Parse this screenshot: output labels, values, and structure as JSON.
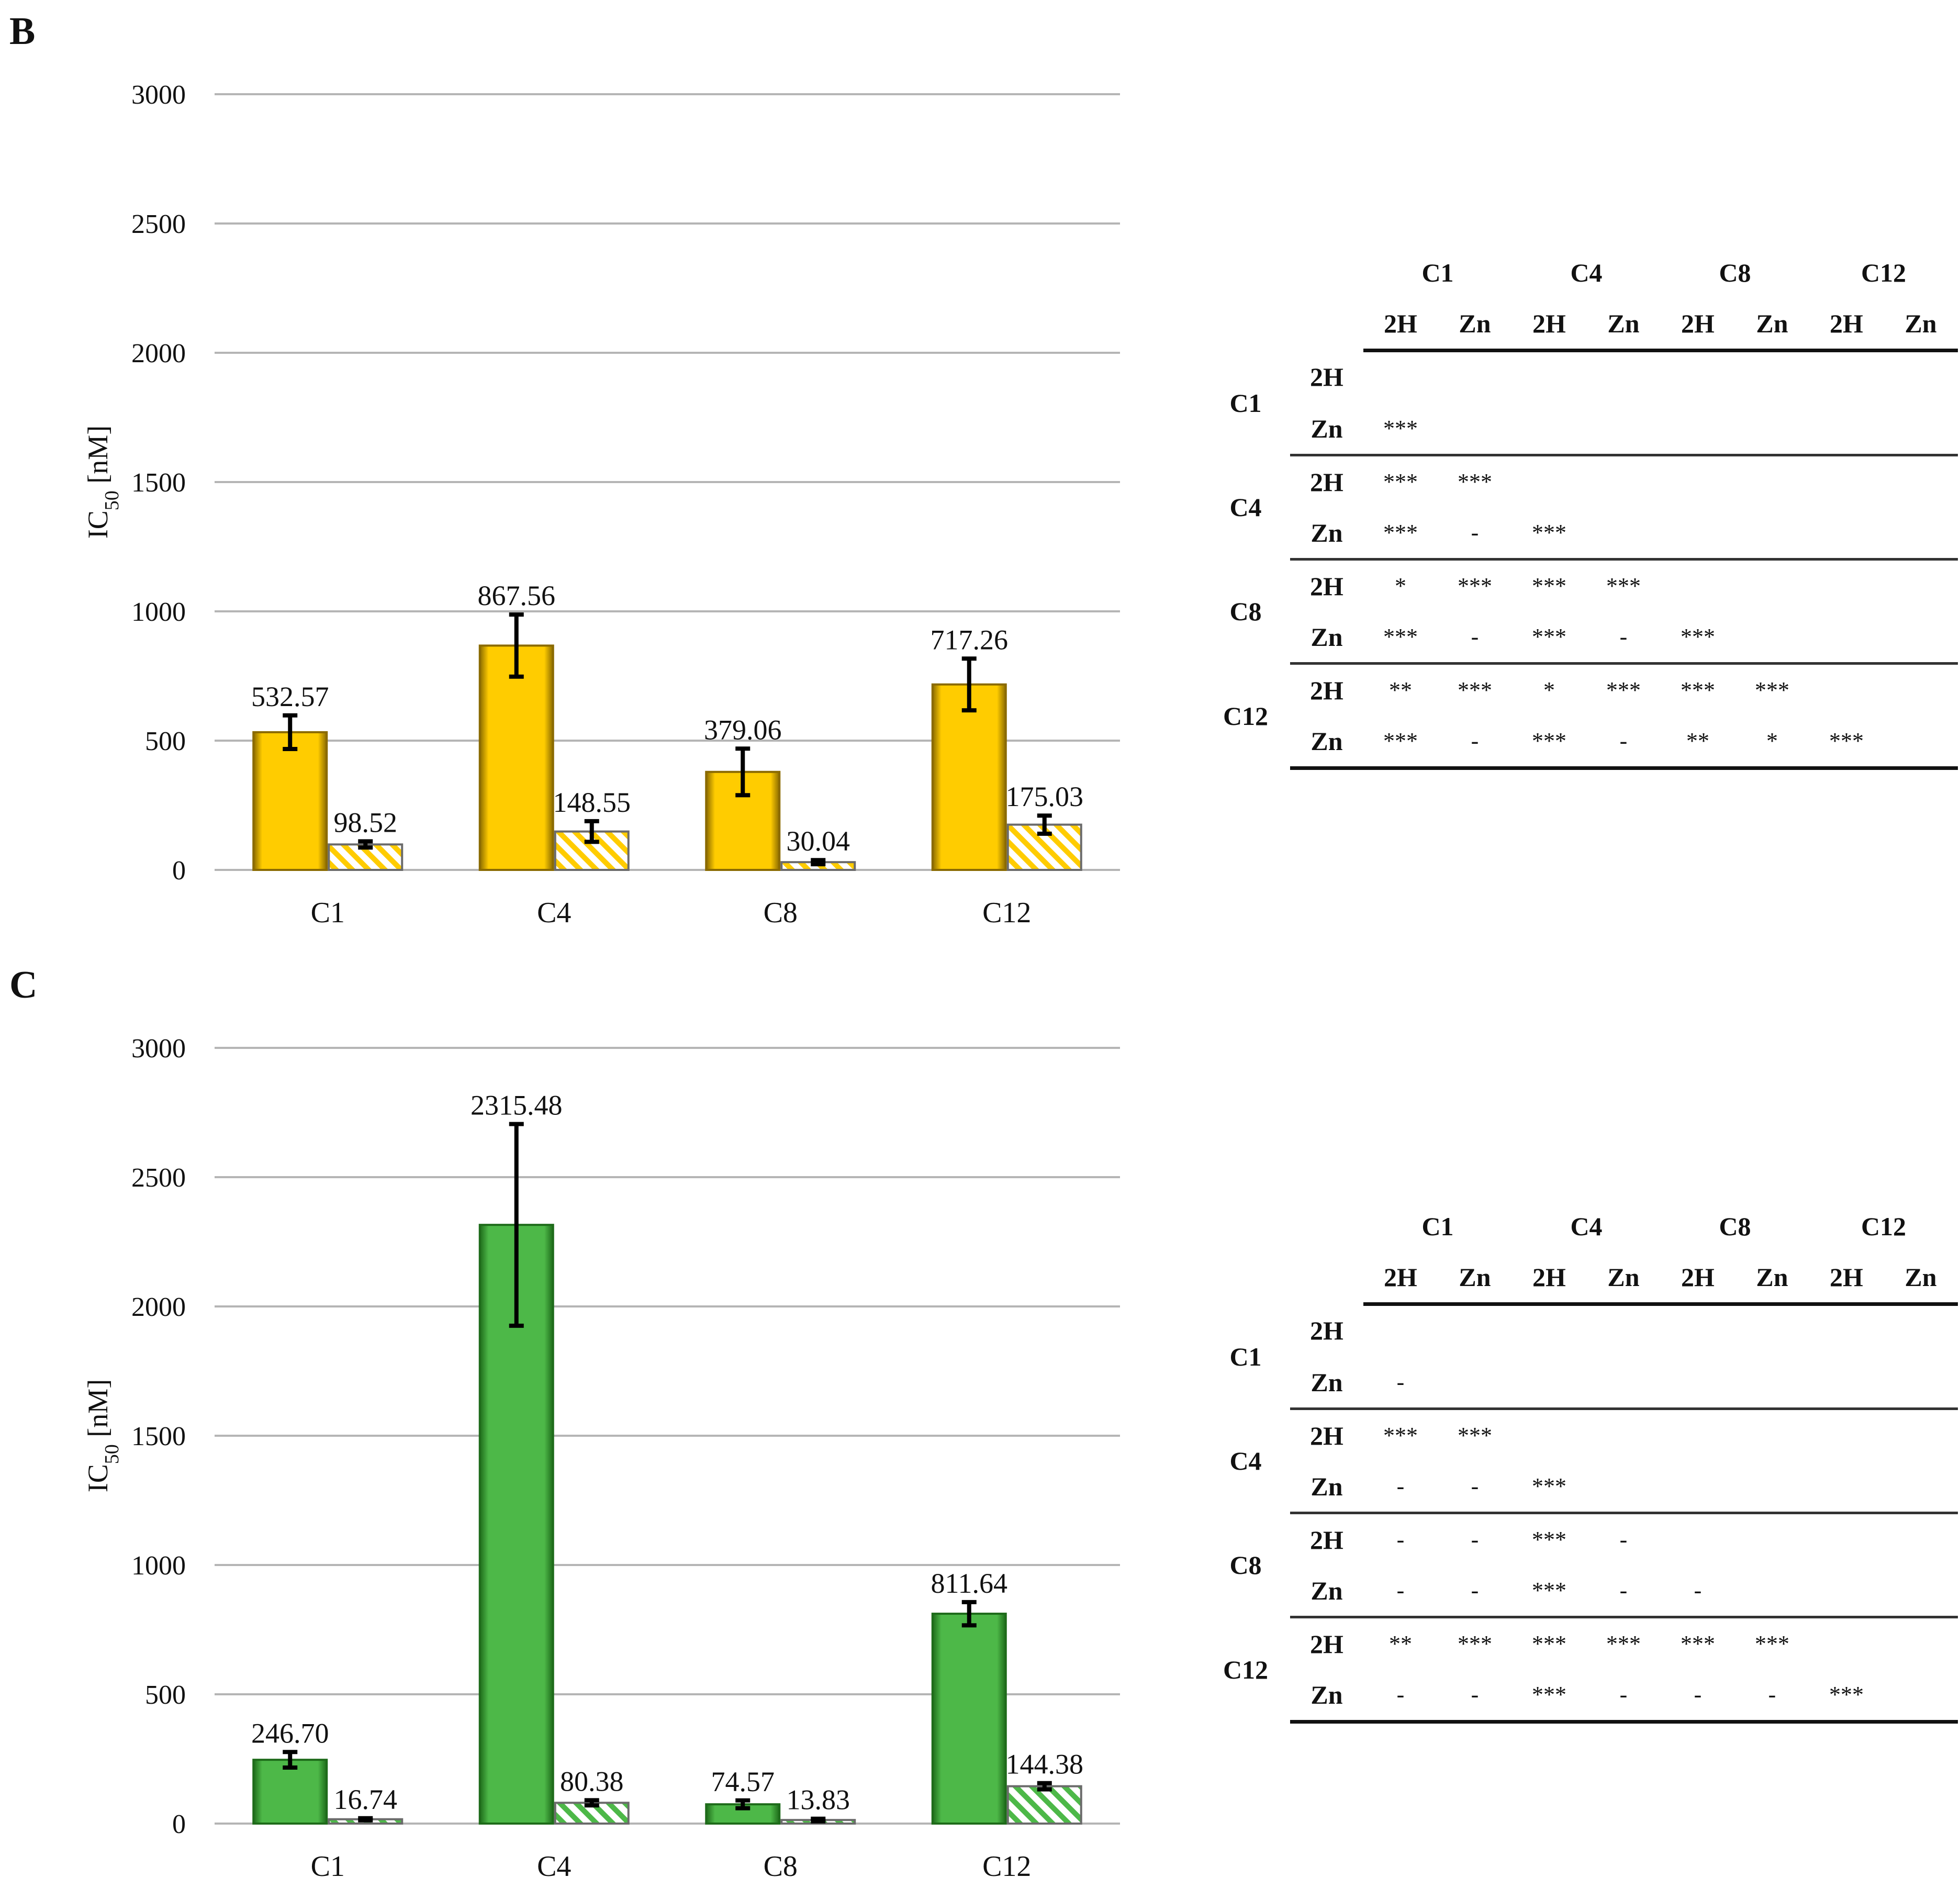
{
  "panels": [
    {
      "letter": "B",
      "chart_data": {
        "type": "bar",
        "categories": [
          "C1",
          "C4",
          "C8",
          "C12"
        ],
        "series": [
          {
            "values": [
              532.57,
              867.56,
              379.06,
              717.26
            ],
            "errors": [
              65,
              120,
              90,
              100
            ],
            "fill": "solid"
          },
          {
            "values": [
              98.52,
              148.55,
              30.04,
              175.03
            ],
            "errors": [
              12,
              40,
              8,
              35
            ],
            "fill": "hatched"
          }
        ],
        "labels": [
          [
            "532.57",
            "98.52"
          ],
          [
            "867.56",
            "148.55"
          ],
          [
            "379.06",
            "30.04"
          ],
          [
            "717.26",
            "175.03"
          ]
        ],
        "ylabel": "IC50 [nM]",
        "ylim": [
          0,
          3000
        ],
        "yticks": [
          0,
          500,
          1000,
          1500,
          2000,
          2500,
          3000
        ],
        "grid": true,
        "color": "#FFCC00",
        "edge": "#8A6A00"
      },
      "table": {
        "groups": [
          "C1",
          "C4",
          "C8",
          "C12"
        ],
        "subs": [
          "2H",
          "Zn"
        ],
        "rows": [
          [
            "",
            "",
            "",
            "",
            "",
            "",
            "",
            ""
          ],
          [
            "***",
            "",
            "",
            "",
            "",
            "",
            "",
            ""
          ],
          [
            "***",
            "***",
            "",
            "",
            "",
            "",
            "",
            ""
          ],
          [
            "***",
            "-",
            "***",
            "",
            "",
            "",
            "",
            ""
          ],
          [
            "*",
            "***",
            "***",
            "***",
            "",
            "",
            "",
            ""
          ],
          [
            "***",
            "-",
            "***",
            "-",
            "***",
            "",
            "",
            ""
          ],
          [
            "**",
            "***",
            "*",
            "***",
            "***",
            "***",
            "",
            ""
          ],
          [
            "***",
            "-",
            "***",
            "-",
            "**",
            "*",
            "***",
            ""
          ]
        ]
      }
    },
    {
      "letter": "C",
      "chart_data": {
        "type": "bar",
        "categories": [
          "C1",
          "C4",
          "C8",
          "C12"
        ],
        "series": [
          {
            "values": [
              246.7,
              2315.48,
              74.57,
              811.64
            ],
            "errors": [
              30,
              390,
              15,
              45
            ],
            "fill": "solid"
          },
          {
            "values": [
              16.74,
              80.38,
              13.83,
              144.38
            ],
            "errors": [
              4,
              10,
              5,
              12
            ],
            "fill": "hatched"
          }
        ],
        "labels": [
          [
            "246.70",
            "16.74"
          ],
          [
            "2315.48",
            "80.38"
          ],
          [
            "74.57",
            "13.83"
          ],
          [
            "811.64",
            "144.38"
          ]
        ],
        "ylabel": "IC50 [nM]",
        "ylim": [
          0,
          3000
        ],
        "yticks": [
          0,
          500,
          1000,
          1500,
          2000,
          2500,
          3000
        ],
        "grid": true,
        "color": "#4DB848",
        "edge": "#1E6B1A"
      },
      "table": {
        "groups": [
          "C1",
          "C4",
          "C8",
          "C12"
        ],
        "subs": [
          "2H",
          "Zn"
        ],
        "rows": [
          [
            "",
            "",
            "",
            "",
            "",
            "",
            "",
            ""
          ],
          [
            "-",
            "",
            "",
            "",
            "",
            "",
            "",
            ""
          ],
          [
            "***",
            "***",
            "",
            "",
            "",
            "",
            "",
            ""
          ],
          [
            "-",
            "-",
            "***",
            "",
            "",
            "",
            "",
            ""
          ],
          [
            "-",
            "-",
            "***",
            "-",
            "",
            "",
            "",
            ""
          ],
          [
            "-",
            "-",
            "***",
            "-",
            "-",
            "",
            "",
            ""
          ],
          [
            "**",
            "***",
            "***",
            "***",
            "***",
            "***",
            "",
            ""
          ],
          [
            "-",
            "-",
            "***",
            "-",
            "-",
            "-",
            "***",
            ""
          ]
        ]
      }
    }
  ]
}
